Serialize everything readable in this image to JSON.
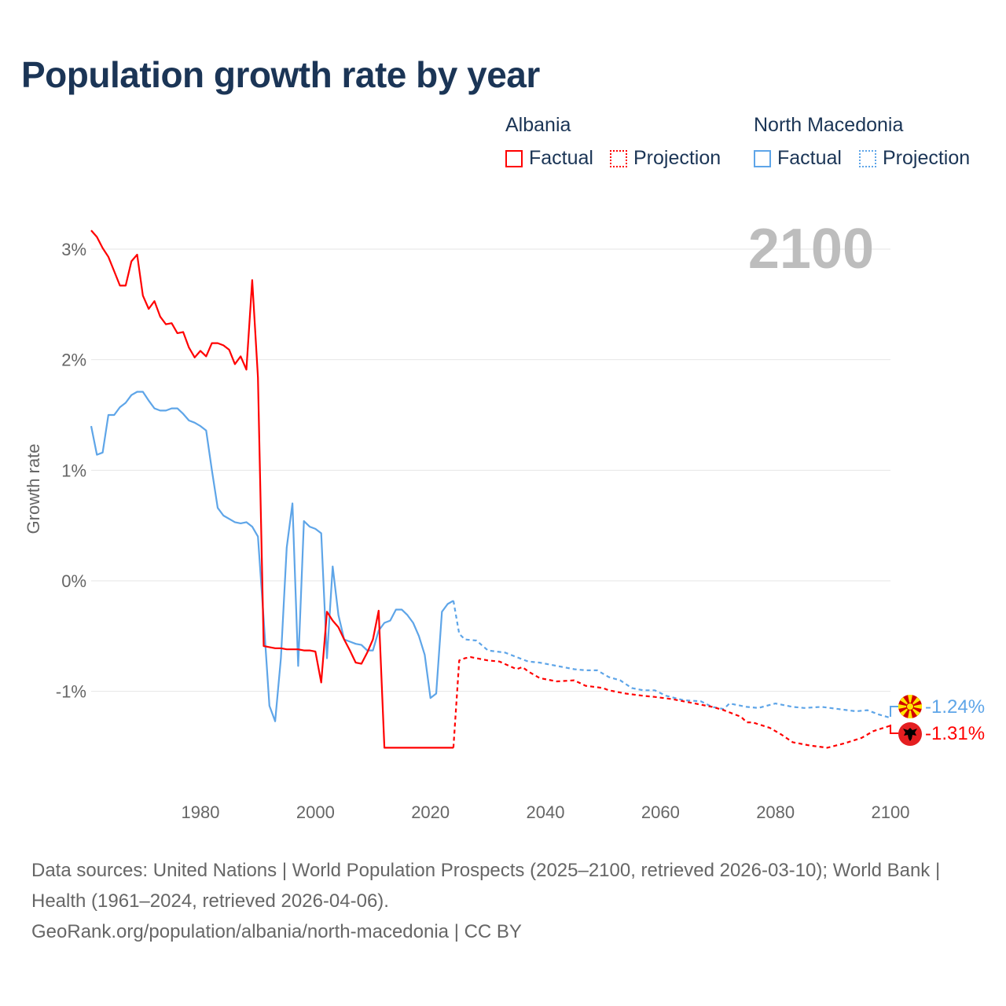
{
  "title": "Population growth rate by year",
  "legend": {
    "albania": {
      "name": "Albania",
      "factual": "Factual",
      "projection": "Projection",
      "color": "#ff0000"
    },
    "north_macedonia": {
      "name": "North Macedonia",
      "factual": "Factual",
      "projection": "Projection",
      "color": "#5ea5e8"
    }
  },
  "year_label": "2100",
  "end_labels": {
    "north_macedonia": "-1.24%",
    "albania": "-1.31%"
  },
  "footer": {
    "sources": "Data sources: United Nations | World Population Prospects (2025–2100, retrieved 2026-03-10); World Bank | Health (1961–2024, retrieved 2026-04-06).",
    "link": "GeoRank.org/population/albania/north-macedonia | CC BY"
  },
  "chart_data": {
    "type": "line",
    "title": "Population growth rate by year",
    "xlabel": "",
    "ylabel": "Growth rate",
    "xlim": [
      1961,
      2100
    ],
    "ylim": [
      -1.9,
      3.3
    ],
    "x_ticks": [
      1980,
      2000,
      2020,
      2040,
      2060,
      2080,
      2100
    ],
    "x_tick_labels": [
      "1980",
      "2000",
      "2020",
      "2040",
      "2060",
      "2080",
      "2100"
    ],
    "y_ticks": [
      3,
      2,
      1,
      0,
      -1
    ],
    "y_tick_labels": [
      "3%",
      "2%",
      "1%",
      "0%",
      "-1%"
    ],
    "grid": true,
    "legend_position": "top-right",
    "series": [
      {
        "name": "Albania Factual",
        "color": "#ff0000",
        "style": "solid",
        "x": [
          1961,
          1962,
          1963,
          1964,
          1965,
          1966,
          1967,
          1968,
          1969,
          1970,
          1971,
          1972,
          1973,
          1974,
          1975,
          1976,
          1977,
          1978,
          1979,
          1980,
          1981,
          1982,
          1983,
          1984,
          1985,
          1986,
          1987,
          1988,
          1989,
          1990,
          1991,
          1992,
          1993,
          1994,
          1995,
          1996,
          1997,
          1998,
          1999,
          2000,
          2001,
          2002,
          2003,
          2004,
          2005,
          2006,
          2007,
          2008,
          2009,
          2010,
          2011,
          2012,
          2013,
          2014,
          2015,
          2016,
          2017,
          2018,
          2019,
          2020,
          2021,
          2022,
          2023,
          2024
        ],
        "y": [
          3.17,
          3.11,
          3.01,
          2.93,
          2.8,
          2.67,
          2.67,
          2.89,
          2.95,
          2.58,
          2.46,
          2.53,
          2.39,
          2.32,
          2.33,
          2.24,
          2.25,
          2.11,
          2.02,
          2.08,
          2.03,
          2.15,
          2.15,
          2.13,
          2.09,
          1.96,
          2.03,
          1.91,
          2.72,
          1.84,
          -0.59,
          -0.6,
          -0.61,
          -0.61,
          -0.62,
          -0.62,
          -0.62,
          -0.63,
          -0.63,
          -0.64,
          -0.92,
          -0.28,
          -0.36,
          -0.42,
          -0.53,
          -0.63,
          -0.74,
          -0.75,
          -0.65,
          -0.53,
          -0.27,
          -1.51,
          -1.51,
          -1.51,
          -1.51,
          -1.51,
          -1.51,
          -1.51,
          -1.51,
          -1.51,
          -1.51,
          -1.51,
          -1.51,
          -1.51
        ]
      },
      {
        "name": "Albania Projection",
        "color": "#ff0000",
        "style": "dotted",
        "x": [
          2024,
          2025,
          2026,
          2027,
          2028,
          2030,
          2032,
          2035,
          2036,
          2037,
          2039,
          2042,
          2045,
          2047,
          2050,
          2051,
          2054,
          2057,
          2059,
          2062,
          2064,
          2066,
          2069,
          2071,
          2074,
          2075,
          2076,
          2079,
          2081,
          2083,
          2086,
          2089,
          2092,
          2095,
          2097,
          2100
        ],
        "y": [
          -1.51,
          -0.72,
          -0.7,
          -0.69,
          -0.7,
          -0.72,
          -0.73,
          -0.8,
          -0.78,
          -0.82,
          -0.88,
          -0.91,
          -0.9,
          -0.95,
          -0.97,
          -0.99,
          -1.02,
          -1.04,
          -1.05,
          -1.07,
          -1.09,
          -1.11,
          -1.14,
          -1.17,
          -1.23,
          -1.28,
          -1.28,
          -1.33,
          -1.39,
          -1.46,
          -1.49,
          -1.51,
          -1.47,
          -1.42,
          -1.36,
          -1.31
        ]
      },
      {
        "name": "North Macedonia Factual",
        "color": "#5ea5e8",
        "style": "solid",
        "x": [
          1961,
          1962,
          1963,
          1964,
          1965,
          1966,
          1967,
          1968,
          1969,
          1970,
          1971,
          1972,
          1973,
          1974,
          1975,
          1976,
          1977,
          1978,
          1979,
          1980,
          1981,
          1982,
          1983,
          1984,
          1985,
          1986,
          1987,
          1988,
          1989,
          1990,
          1991,
          1992,
          1993,
          1994,
          1995,
          1996,
          1997,
          1998,
          1999,
          2000,
          2001,
          2002,
          2003,
          2004,
          2005,
          2006,
          2007,
          2008,
          2009,
          2010,
          2011,
          2012,
          2013,
          2014,
          2015,
          2016,
          2017,
          2018,
          2019,
          2020,
          2021,
          2022,
          2023,
          2024
        ],
        "y": [
          1.4,
          1.14,
          1.16,
          1.5,
          1.5,
          1.57,
          1.61,
          1.68,
          1.71,
          1.71,
          1.63,
          1.56,
          1.54,
          1.54,
          1.56,
          1.56,
          1.51,
          1.45,
          1.43,
          1.4,
          1.36,
          1.0,
          0.66,
          0.59,
          0.56,
          0.53,
          0.52,
          0.53,
          0.49,
          0.4,
          -0.35,
          -1.13,
          -1.27,
          -0.7,
          0.3,
          0.7,
          -0.77,
          0.54,
          0.49,
          0.47,
          0.43,
          -0.7,
          0.13,
          -0.31,
          -0.53,
          -0.55,
          -0.57,
          -0.58,
          -0.63,
          -0.63,
          -0.45,
          -0.38,
          -0.36,
          -0.26,
          -0.26,
          -0.31,
          -0.38,
          -0.5,
          -0.67,
          -1.06,
          -1.02,
          -0.28,
          -0.21,
          -0.18
        ]
      },
      {
        "name": "North Macedonia Projection",
        "color": "#5ea5e8",
        "style": "dotted",
        "x": [
          2024,
          2025,
          2026,
          2028,
          2030,
          2033,
          2035,
          2037,
          2039,
          2042,
          2045,
          2047,
          2049,
          2051,
          2053,
          2055,
          2057,
          2059,
          2061,
          2064,
          2067,
          2069,
          2071,
          2072,
          2075,
          2077,
          2080,
          2083,
          2085,
          2088,
          2091,
          2094,
          2096,
          2098,
          2100
        ],
        "y": [
          -0.18,
          -0.48,
          -0.53,
          -0.54,
          -0.63,
          -0.65,
          -0.69,
          -0.73,
          -0.74,
          -0.77,
          -0.8,
          -0.81,
          -0.81,
          -0.87,
          -0.9,
          -0.97,
          -0.99,
          -0.99,
          -1.04,
          -1.08,
          -1.09,
          -1.14,
          -1.16,
          -1.11,
          -1.14,
          -1.15,
          -1.11,
          -1.14,
          -1.15,
          -1.14,
          -1.16,
          -1.18,
          -1.17,
          -1.21,
          -1.24
        ]
      }
    ]
  }
}
